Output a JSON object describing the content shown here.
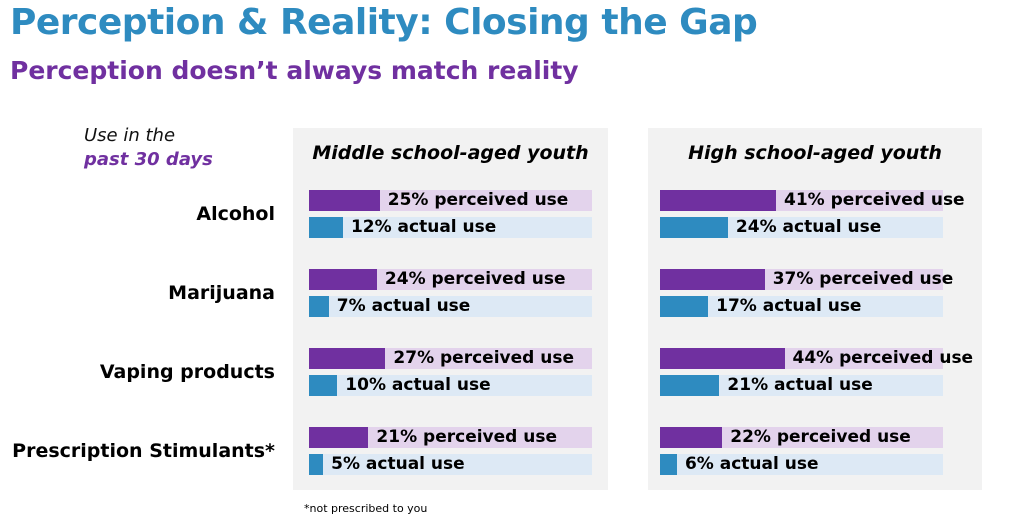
{
  "title": "Perception & Reality: Closing the Gap",
  "subtitle": "Perception doesn’t always match reality",
  "use_label": {
    "line1": "Use in the",
    "line2": "past 30 days"
  },
  "footnote": "*not prescribed to you",
  "chart_data": {
    "type": "bar",
    "categories": [
      "Alcohol",
      "Marijuana",
      "Vaping products",
      "Prescription Stimulants*"
    ],
    "xlim": [
      0,
      100
    ],
    "colors": {
      "perceived": "#7030a0",
      "perceived_track": "#e3d3ec",
      "actual": "#2e8bc0",
      "actual_track": "#dde9f5"
    },
    "panels": [
      {
        "title": "Middle school-aged youth",
        "perceived": [
          25,
          24,
          27,
          21
        ],
        "actual": [
          12,
          7,
          10,
          5
        ],
        "perceived_labels": [
          "25% perceived use",
          "24% perceived use",
          "27% perceived use",
          "21% perceived use"
        ],
        "actual_labels": [
          "12% actual use",
          "7% actual use",
          "10% actual use",
          "5% actual use"
        ]
      },
      {
        "title": "High school-aged youth",
        "perceived": [
          41,
          37,
          44,
          22
        ],
        "actual": [
          24,
          17,
          21,
          6
        ],
        "perceived_labels": [
          "41% perceived use",
          "37% perceived use",
          "44% perceived use",
          "22% perceived use"
        ],
        "actual_labels": [
          "24% actual use",
          "17% actual use",
          "21% actual use",
          "6% actual use"
        ]
      }
    ]
  }
}
